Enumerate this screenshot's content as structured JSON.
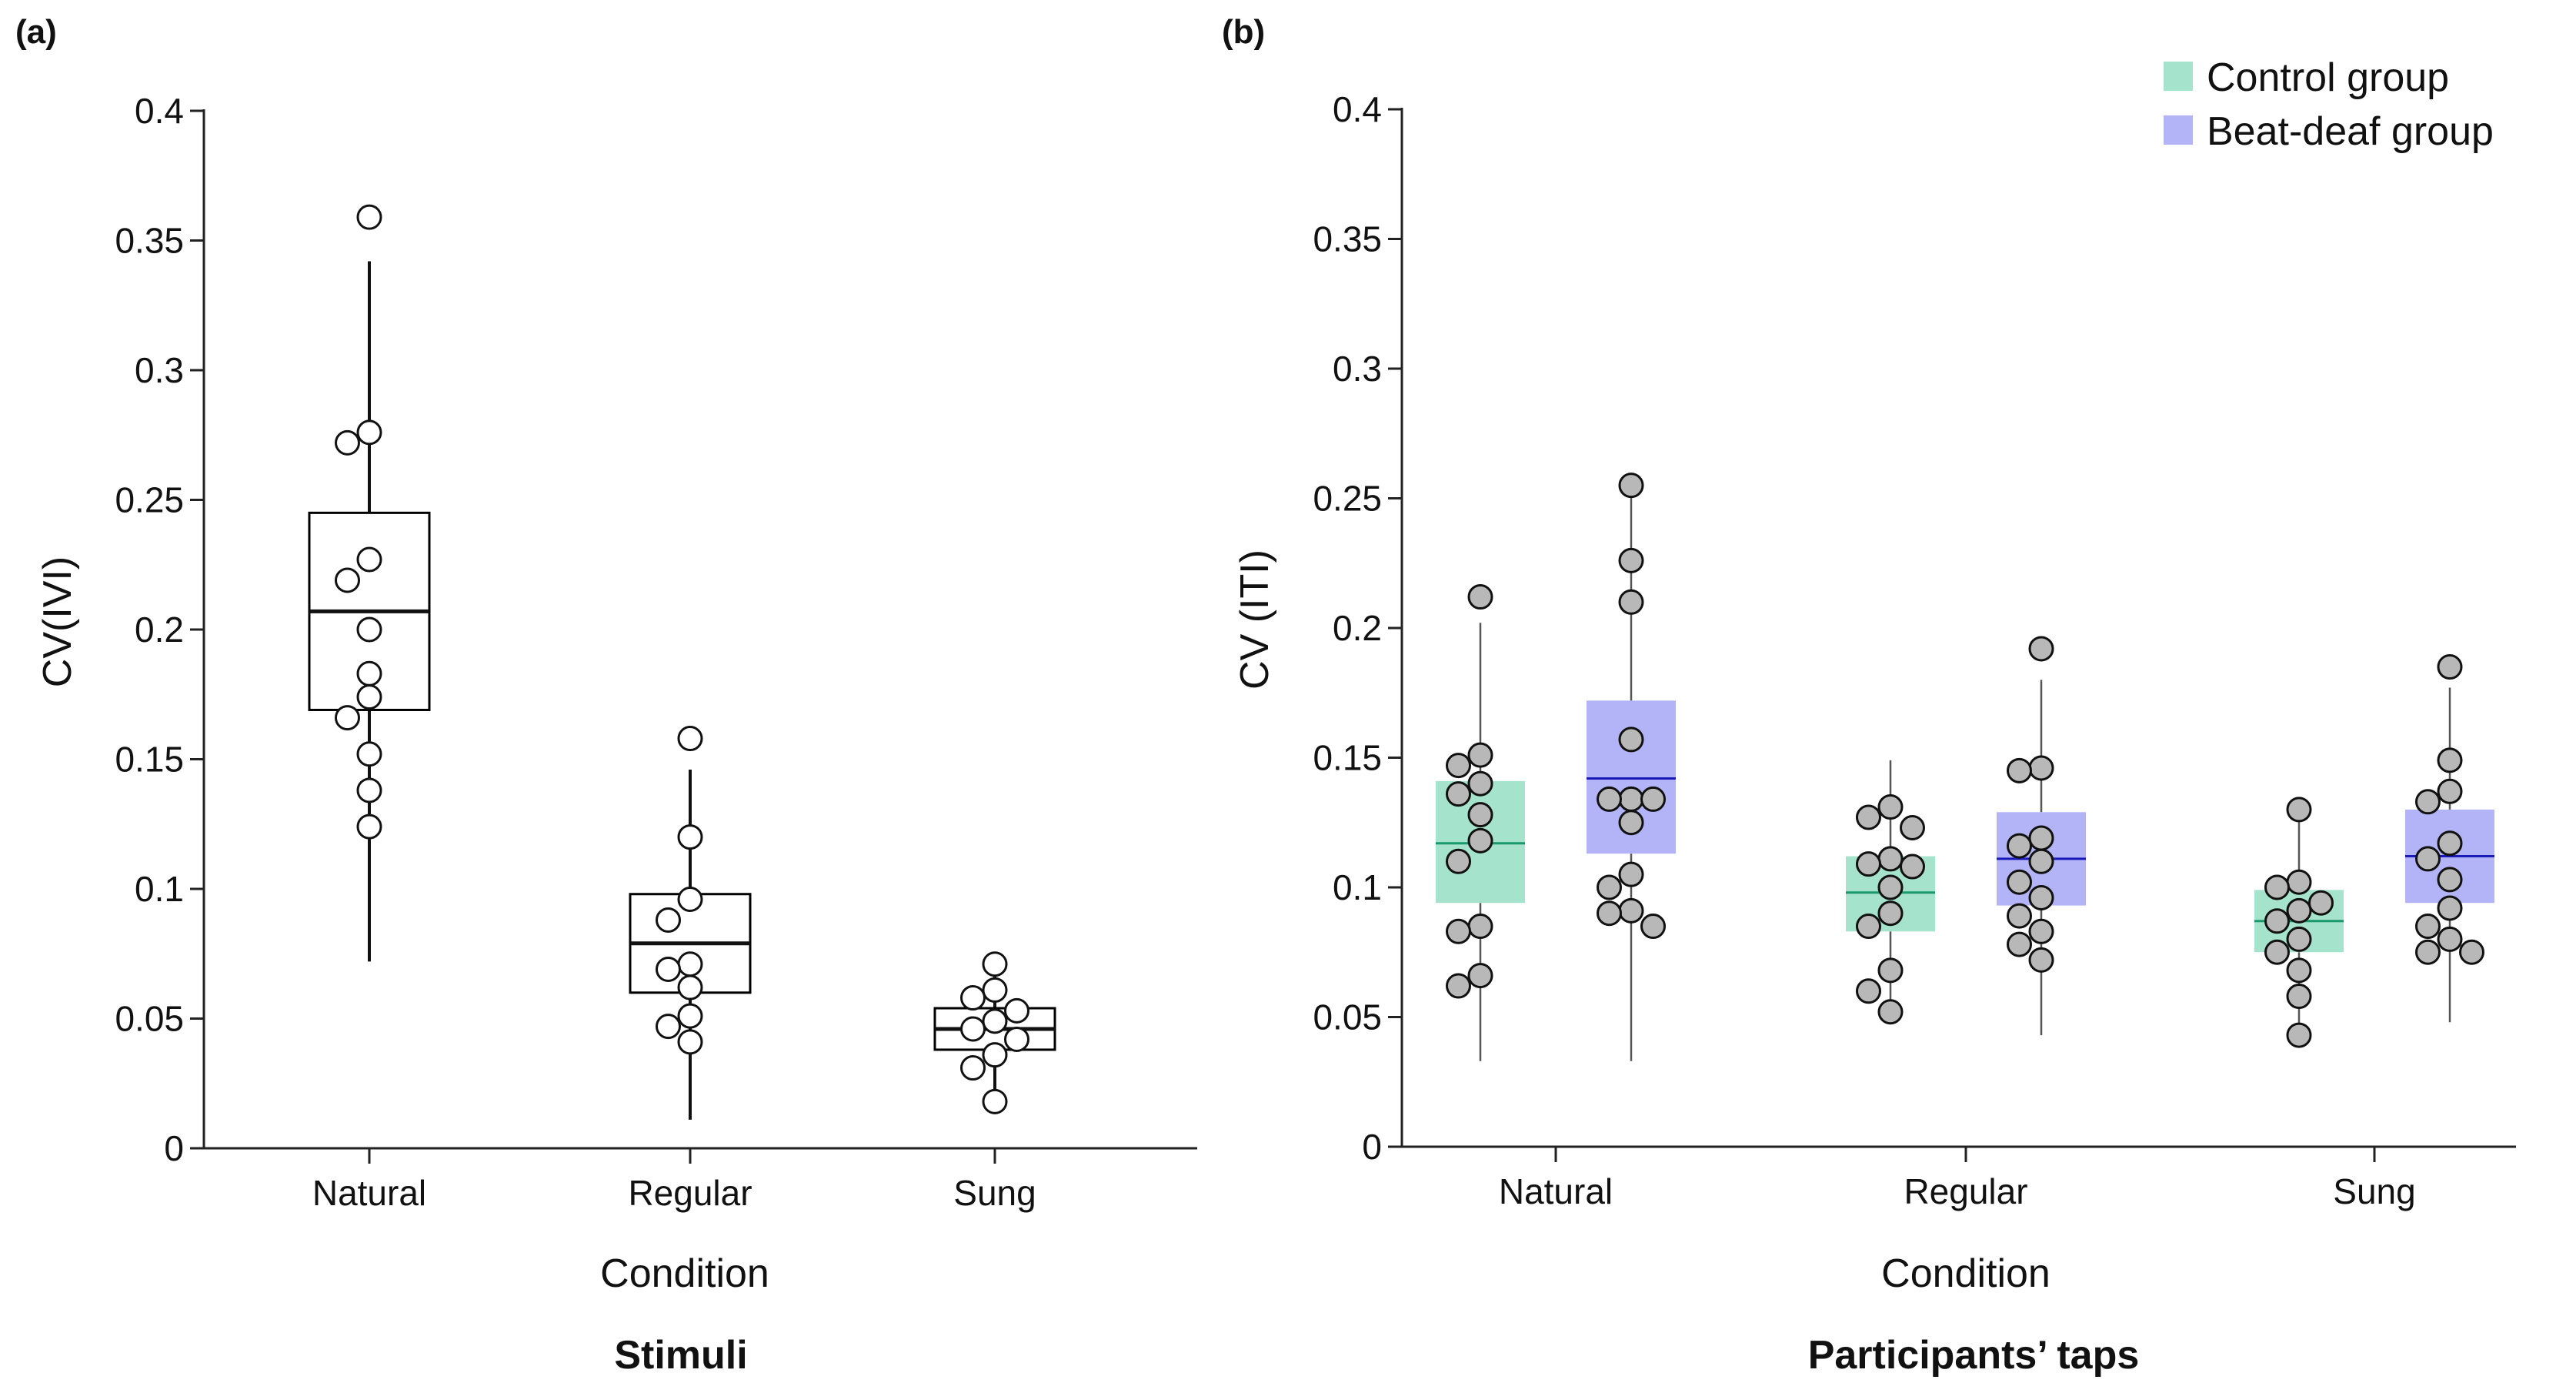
{
  "chart_data": [
    {
      "type": "box",
      "panel_label": "(a)",
      "caption": "Stimuli",
      "xlabel": "Condition",
      "ylabel": "CV(IVI)",
      "ylim": [
        0,
        0.4
      ],
      "yticks": [
        "0",
        "0.05",
        "0.1",
        "0.15",
        "0.2",
        "0.25",
        "0.3",
        "0.35",
        "0.4"
      ],
      "categories": [
        "Natural",
        "Regular",
        "Sung"
      ],
      "box_style": {
        "fill": "#ffffff",
        "stroke": "#000000",
        "point_fill": "#ffffff"
      },
      "boxes": [
        {
          "category": "Natural",
          "whisker_low": 0.072,
          "q1": 0.169,
          "median": 0.207,
          "q3": 0.245,
          "whisker_high": 0.342,
          "points": [
            0.359,
            0.276,
            0.272,
            0.227,
            0.219,
            0.2,
            0.183,
            0.174,
            0.166,
            0.152,
            0.138,
            0.124
          ]
        },
        {
          "category": "Regular",
          "whisker_low": 0.011,
          "q1": 0.06,
          "median": 0.079,
          "q3": 0.098,
          "whisker_high": 0.146,
          "points": [
            0.158,
            0.12,
            0.096,
            0.088,
            0.071,
            0.069,
            0.062,
            0.051,
            0.047,
            0.041
          ]
        },
        {
          "category": "Sung",
          "whisker_low": 0.017,
          "q1": 0.038,
          "median": 0.046,
          "q3": 0.054,
          "whisker_high": 0.071,
          "points": [
            0.071,
            0.061,
            0.058,
            0.053,
            0.049,
            0.046,
            0.042,
            0.036,
            0.031,
            0.018
          ]
        }
      ]
    },
    {
      "type": "box",
      "panel_label": "(b)",
      "caption": "Participants’ taps",
      "xlabel": "Condition",
      "ylabel": "CV (ITI)",
      "ylim": [
        0,
        0.4
      ],
      "yticks": [
        "0",
        "0.05",
        "0.1",
        "0.15",
        "0.2",
        "0.25",
        "0.3",
        "0.35",
        "0.4"
      ],
      "categories": [
        "Natural",
        "Regular",
        "Sung"
      ],
      "legend": {
        "position": "top-right",
        "entries": [
          {
            "name": "Control group",
            "color": "#a5e3cd"
          },
          {
            "name": "Beat-deaf group",
            "color": "#b3b3f7"
          }
        ]
      },
      "series": [
        {
          "name": "Control group",
          "box_color": "#a5e3cd",
          "median_color": "#1a9a6c",
          "point_fill": "#b8b8b8",
          "boxes": [
            {
              "category": "Natural",
              "whisker_low": 0.033,
              "q1": 0.094,
              "median": 0.117,
              "q3": 0.141,
              "whisker_high": 0.202,
              "points": [
                0.212,
                0.151,
                0.147,
                0.14,
                0.136,
                0.128,
                0.118,
                0.11,
                0.085,
                0.083,
                0.066,
                0.062
              ]
            },
            {
              "category": "Regular",
              "whisker_low": 0.053,
              "q1": 0.083,
              "median": 0.098,
              "q3": 0.112,
              "whisker_high": 0.149,
              "points": [
                0.131,
                0.127,
                0.123,
                0.111,
                0.109,
                0.108,
                0.1,
                0.09,
                0.085,
                0.068,
                0.06,
                0.052
              ]
            },
            {
              "category": "Sung",
              "whisker_low": 0.043,
              "q1": 0.075,
              "median": 0.087,
              "q3": 0.099,
              "whisker_high": 0.129,
              "points": [
                0.13,
                0.102,
                0.1,
                0.094,
                0.091,
                0.087,
                0.08,
                0.075,
                0.068,
                0.058,
                0.043
              ]
            }
          ]
        },
        {
          "name": "Beat-deaf group",
          "box_color": "#b3b3f7",
          "median_color": "#1a1ab8",
          "point_fill": "#b8b8b8",
          "boxes": [
            {
              "category": "Natural",
              "whisker_low": 0.033,
              "q1": 0.113,
              "median": 0.142,
              "q3": 0.172,
              "whisker_high": 0.254,
              "points": [
                0.255,
                0.226,
                0.21,
                0.157,
                0.134,
                0.134,
                0.134,
                0.125,
                0.105,
                0.1,
                0.091,
                0.09,
                0.085
              ]
            },
            {
              "category": "Regular",
              "whisker_low": 0.043,
              "q1": 0.093,
              "median": 0.111,
              "q3": 0.129,
              "whisker_high": 0.18,
              "points": [
                0.192,
                0.146,
                0.145,
                0.119,
                0.116,
                0.11,
                0.102,
                0.096,
                0.089,
                0.083,
                0.078,
                0.072
              ]
            },
            {
              "category": "Sung",
              "whisker_low": 0.048,
              "q1": 0.094,
              "median": 0.112,
              "q3": 0.13,
              "whisker_high": 0.177,
              "points": [
                0.185,
                0.149,
                0.137,
                0.133,
                0.117,
                0.111,
                0.103,
                0.092,
                0.085,
                0.08,
                0.075,
                0.075
              ]
            }
          ]
        }
      ]
    }
  ]
}
